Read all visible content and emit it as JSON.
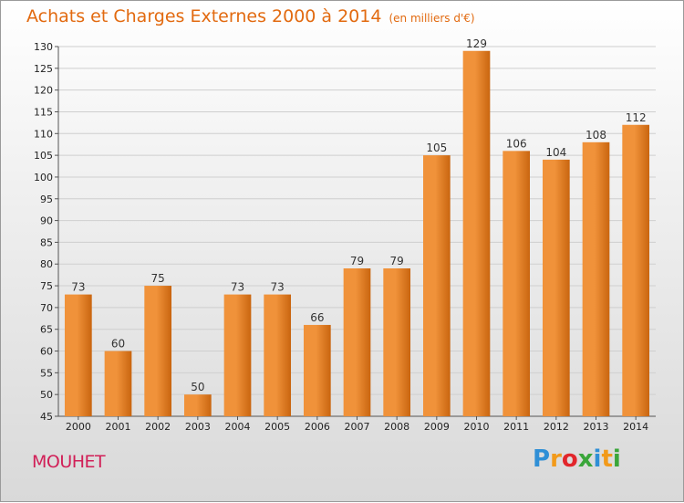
{
  "chart_data": {
    "type": "bar",
    "title": "Achats et Charges Externes 2000 à 2014",
    "subtitle": "(en milliers d'€)",
    "categories": [
      "2000",
      "2001",
      "2002",
      "2003",
      "2004",
      "2005",
      "2006",
      "2007",
      "2008",
      "2009",
      "2010",
      "2011",
      "2012",
      "2013",
      "2014"
    ],
    "values": [
      73,
      60,
      75,
      50,
      73,
      73,
      66,
      79,
      79,
      105,
      129,
      106,
      104,
      108,
      112
    ],
    "ylim": [
      45,
      130
    ],
    "yticks": [
      45,
      50,
      55,
      60,
      65,
      70,
      75,
      80,
      85,
      90,
      95,
      100,
      105,
      110,
      115,
      120,
      125,
      130
    ],
    "grid": true,
    "bar_color": "#f0923a",
    "bar_color_dark": "#c9650f"
  },
  "footer": {
    "town": "MOUHET",
    "logo_letters": [
      "P",
      "r",
      "o",
      "x",
      "i",
      "t",
      "i"
    ],
    "logo_colors": [
      "#2f8fd6",
      "#f29a1a",
      "#e2262b",
      "#3aa63a",
      "#2f8fd6",
      "#f29a1a",
      "#3aa63a"
    ]
  }
}
